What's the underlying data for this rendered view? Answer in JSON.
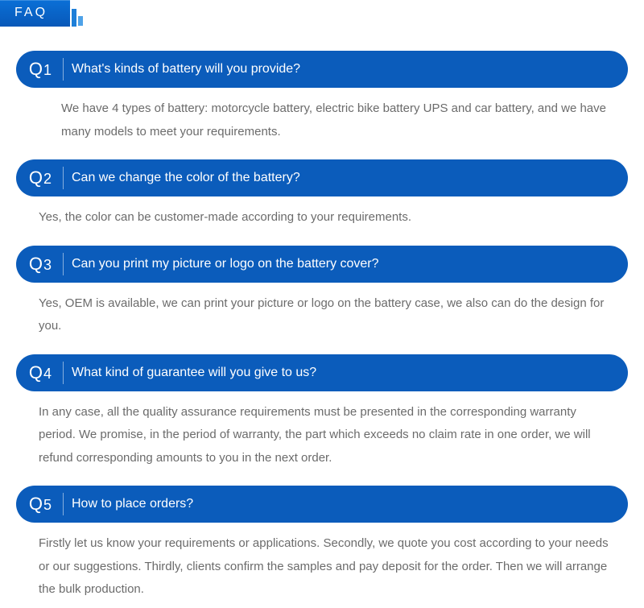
{
  "header": {
    "title": "FAQ"
  },
  "faq": [
    {
      "badge_letter": "Q",
      "badge_num": "1",
      "question": "What's kinds of battery will you provide?",
      "answer": "We have 4 types of battery: motorcycle battery, electric bike battery UPS and car battery, and we have many models to meet your requirements."
    },
    {
      "badge_letter": "Q",
      "badge_num": "2",
      "question": "Can we change the color of the battery?",
      "answer": "Yes, the color can be customer-made according to your requirements."
    },
    {
      "badge_letter": "Q",
      "badge_num": "3",
      "question": "Can you print my picture or logo on the battery cover?",
      "answer": "Yes, OEM is available, we can print your picture or logo on the battery case, we also can do the design for you."
    },
    {
      "badge_letter": "Q",
      "badge_num": "4",
      "question": "What kind of guarantee will you give to us?",
      "answer": "In any case, all the quality assurance requirements must be presented in the corresponding warranty period. We promise, in the period of warranty, the part which exceeds no claim rate in one order, we will refund corresponding amounts to you in the next order."
    },
    {
      "badge_letter": "Q",
      "badge_num": "5",
      "question": "How to place orders?",
      "answer": "Firstly let us know your requirements or applications. Secondly, we quote you cost according to your needs or our suggestions. Thirdly, clients confirm the samples and pay deposit for the order. Then we will arrange the bulk production."
    }
  ],
  "colors": {
    "header_bg_top": "#0a6fd6",
    "header_bg_bottom": "#0858b8",
    "pill_bg": "#0b5cbb",
    "answer_text": "#6b6b6b"
  }
}
